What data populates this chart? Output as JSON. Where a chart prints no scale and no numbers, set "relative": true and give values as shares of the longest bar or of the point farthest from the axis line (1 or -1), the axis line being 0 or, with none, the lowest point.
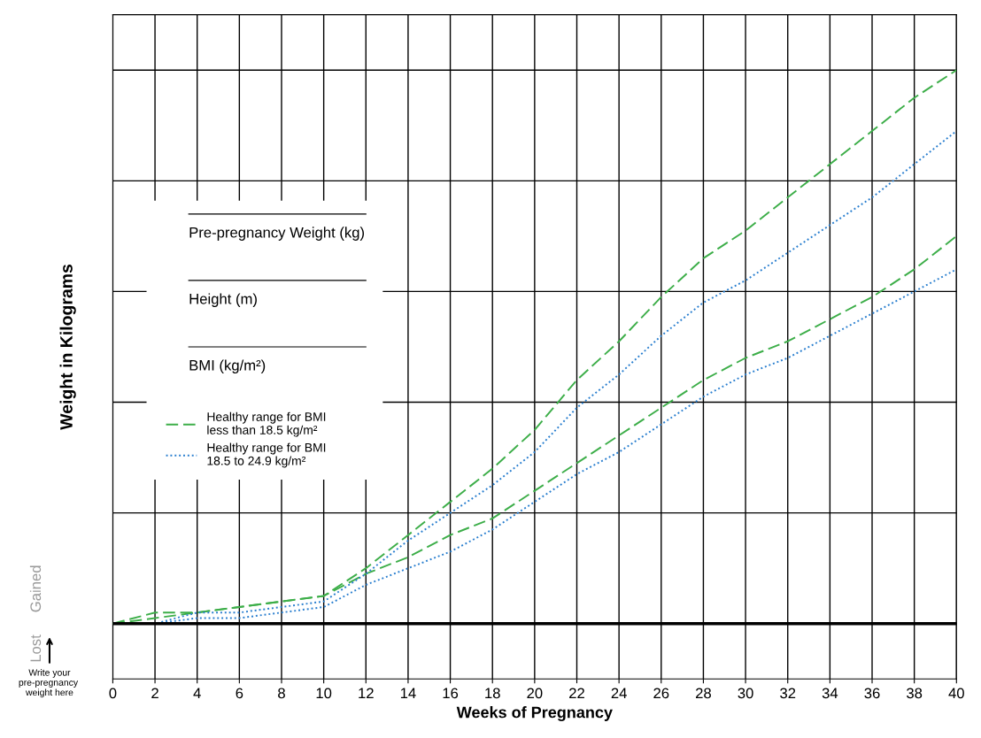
{
  "chart_data": {
    "type": "line",
    "relative": true,
    "xlabel": "Weeks of Pregnancy",
    "ylabel": "Weight in Kilograms",
    "xlim": [
      0,
      40
    ],
    "xticks": [
      0,
      2,
      4,
      6,
      8,
      10,
      12,
      14,
      16,
      18,
      20,
      22,
      24,
      26,
      28,
      30,
      32,
      34,
      36,
      38,
      40
    ],
    "grid": true,
    "legend": "left",
    "tick_labels": "x",
    "annotations": [
      "Gained",
      "Lost",
      "Write your pre-pregnancy weight here",
      "Pre-pregnancy Weight (kg)",
      "Height (m)",
      "BMI (kg/m²)"
    ],
    "series": [
      {
        "name": "Healthy range for BMI\nless than 18.5 kg/m²",
        "color": "#3dae49",
        "line_style": "dashed",
        "x": [
          0,
          2,
          4,
          6,
          8,
          10,
          12,
          14,
          16,
          18,
          20,
          22,
          24,
          26,
          28,
          30,
          32,
          34,
          36,
          38,
          40
        ],
        "values": [
          0,
          0.02,
          0.02,
          0.03,
          0.04,
          0.05,
          0.1,
          0.16,
          0.22,
          0.28,
          0.35,
          0.44,
          0.51,
          0.59,
          0.66,
          0.71,
          0.77,
          0.83,
          0.89,
          0.95,
          1
        ]
      },
      {
        "color": "#3dae49",
        "line_style": "dashed",
        "x": [
          0,
          2,
          4,
          6,
          8,
          10,
          12,
          14,
          16,
          18,
          20,
          22,
          24,
          26,
          28,
          30,
          32,
          34,
          36,
          38,
          40
        ],
        "values": [
          0,
          0.01,
          0.02,
          0.03,
          0.04,
          0.05,
          0.09,
          0.12,
          0.16,
          0.19,
          0.24,
          0.29,
          0.34,
          0.39,
          0.44,
          0.48,
          0.51,
          0.55,
          0.59,
          0.64,
          0.7
        ]
      },
      {
        "name": "Healthy range for BMI\n18.5 to 24.9 kg/m²",
        "color": "#2a7fcf",
        "line_style": "dotted",
        "x": [
          1.7,
          2,
          4,
          6,
          8,
          10,
          12,
          14,
          16,
          18,
          20,
          22,
          24,
          26,
          28,
          30,
          32,
          34,
          36,
          38,
          40
        ],
        "values": [
          0,
          0,
          0.02,
          0.02,
          0.03,
          0.04,
          0.09,
          0.15,
          0.2,
          0.25,
          0.31,
          0.39,
          0.45,
          0.52,
          0.58,
          0.62,
          0.67,
          0.72,
          0.77,
          0.83,
          0.89
        ]
      },
      {
        "color": "#2a7fcf",
        "line_style": "dotted",
        "x": [
          1.7,
          2,
          4,
          6,
          8,
          10,
          12,
          14,
          16,
          18,
          20,
          22,
          24,
          26,
          28,
          30,
          32,
          34,
          36,
          38,
          40
        ],
        "values": [
          0,
          0,
          0.01,
          0.01,
          0.02,
          0.03,
          0.07,
          0.1,
          0.13,
          0.17,
          0.22,
          0.27,
          0.31,
          0.36,
          0.41,
          0.45,
          0.48,
          0.52,
          0.56,
          0.6,
          0.64
        ]
      }
    ]
  }
}
